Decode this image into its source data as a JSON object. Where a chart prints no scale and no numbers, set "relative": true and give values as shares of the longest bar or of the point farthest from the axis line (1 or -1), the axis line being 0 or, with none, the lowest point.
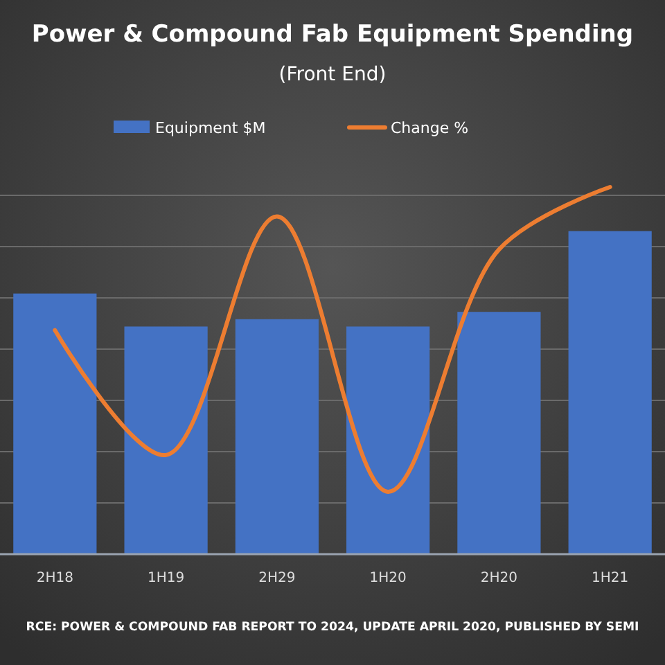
{
  "chart_data": {
    "type": "bar",
    "title": "Power & Compound Fab Equipment Spending",
    "subtitle": "(Front End)",
    "categories": [
      "2H18",
      "1H19",
      "2H29",
      "1H20",
      "2H20",
      "1H21"
    ],
    "relative": true,
    "grid": "y",
    "legend": "top",
    "series": [
      {
        "name": "Equipment $M",
        "color": "#4472c4",
        "values": [
          0.71,
          0.62,
          0.64,
          0.62,
          0.66,
          0.88
        ]
      },
      {
        "name": "Change %",
        "type": "line",
        "color": "#ed7d31",
        "values": [
          0.61,
          0.27,
          0.92,
          0.17,
          0.83,
          1
        ]
      }
    ],
    "annotations": [
      "RCE: POWER & COMPOUND FAB REPORT TO 2024, UPDATE APRIL 2020, PUBLISHED BY SEMI"
    ]
  }
}
